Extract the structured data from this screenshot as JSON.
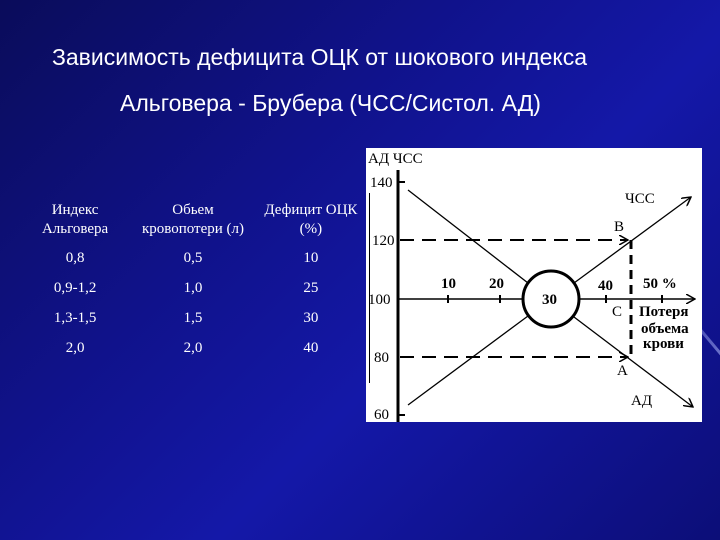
{
  "title": {
    "line1": "Зависимость дефицита ОЦК от шокового индекса",
    "line2": "Альговера - Брубера  (ЧСС/Систол. АД)"
  },
  "table": {
    "headers": [
      "Индекс Альговера",
      "Обьем кровопотери (л)",
      "Дефицит ОЦК (%)"
    ],
    "rows": [
      [
        "0,8",
        "0,5",
        "10"
      ],
      [
        "0,9-1,2",
        "1,0",
        "25"
      ],
      [
        "1,3-1,5",
        "1,5",
        "30"
      ],
      [
        "2,0",
        "2,0",
        "40"
      ]
    ]
  },
  "diagram": {
    "axis_title": "АД  ЧСС",
    "y_ticks": [
      "140",
      "120",
      "100",
      "80",
      "60"
    ],
    "x_ticks": [
      "10",
      "20",
      "30",
      "40",
      "50 %"
    ],
    "hr_label": "ЧСС",
    "bp_label": "АД",
    "point_b": "B",
    "point_c": "C",
    "point_a": "A",
    "loss_label": [
      "Потеря",
      "объема",
      "крови"
    ]
  }
}
